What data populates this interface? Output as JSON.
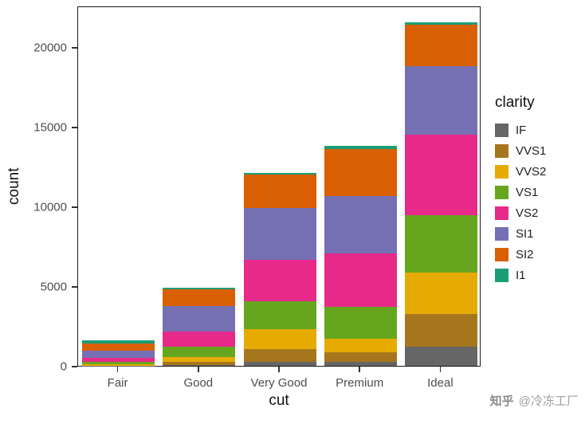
{
  "chart_data": {
    "type": "bar",
    "subtype": "stacked",
    "title": "",
    "xlabel": "cut",
    "ylabel": "count",
    "categories": [
      "Fair",
      "Good",
      "Very Good",
      "Premium",
      "Ideal"
    ],
    "legend_title": "clarity",
    "legend_position": "right",
    "grid": false,
    "ylim": [
      0,
      22600
    ],
    "yticks": [
      0,
      5000,
      10000,
      15000,
      20000
    ],
    "ytick_labels": [
      "0",
      "5000",
      "10000",
      "15000",
      "20000"
    ],
    "stack_order_bottom_to_top": [
      "IF",
      "VVS1",
      "VVS2",
      "VS1",
      "VS2",
      "SI1",
      "SI2",
      "I1"
    ],
    "series": [
      {
        "name": "IF",
        "color": "#666666",
        "values": [
          9,
          71,
          268,
          230,
          1212
        ]
      },
      {
        "name": "VVS1",
        "color": "#A6761D",
        "values": [
          17,
          186,
          789,
          616,
          2047
        ]
      },
      {
        "name": "VVS2",
        "color": "#E6AB02",
        "values": [
          69,
          286,
          1235,
          870,
          2606
        ]
      },
      {
        "name": "VS1",
        "color": "#66A61E",
        "values": [
          170,
          648,
          1775,
          1989,
          3589
        ]
      },
      {
        "name": "VS2",
        "color": "#E7298A",
        "values": [
          261,
          978,
          2591,
          3357,
          5071
        ]
      },
      {
        "name": "SI1",
        "color": "#7570B3",
        "values": [
          408,
          1560,
          3240,
          3575,
          4282
        ]
      },
      {
        "name": "SI2",
        "color": "#D95F02",
        "values": [
          466,
          1081,
          2100,
          2949,
          2598
        ]
      },
      {
        "name": "I1",
        "color": "#1B9E77",
        "values": [
          210,
          96,
          84,
          205,
          146
        ]
      }
    ],
    "totals": [
      1610,
      4906,
      12082,
      13791,
      21551
    ]
  },
  "watermark": {
    "brand": "知乎",
    "text": "@冷冻工厂"
  }
}
